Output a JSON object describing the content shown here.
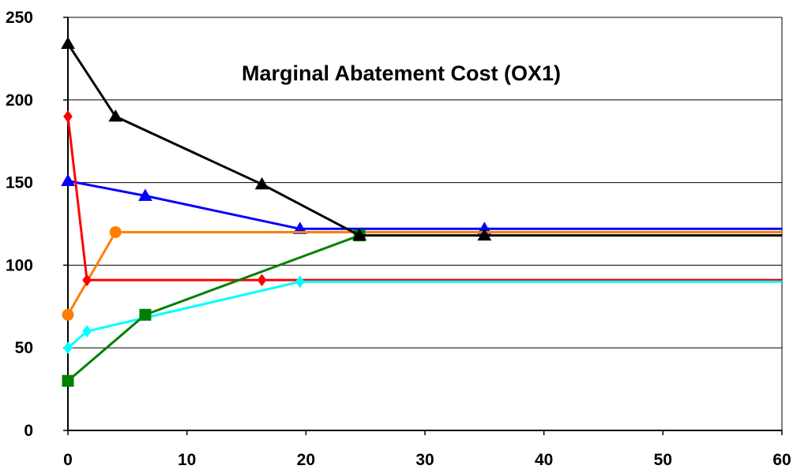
{
  "chart_data": {
    "type": "line",
    "title": "Marginal Abatement Cost (OX1)",
    "xlabel": "",
    "ylabel": "",
    "xlim": [
      0,
      60
    ],
    "ylim": [
      0,
      250
    ],
    "x_ticks": [
      0,
      10,
      20,
      30,
      40,
      50,
      60
    ],
    "y_ticks": [
      0,
      50,
      100,
      150,
      200,
      250
    ],
    "grid": {
      "horizontal": true,
      "vertical": false
    },
    "legend": "none",
    "series": [
      {
        "color": "#0000ff",
        "marker": "triangle",
        "points": [
          [
            0,
            151
          ],
          [
            6.5,
            142
          ],
          [
            19.5,
            122
          ],
          [
            35,
            122
          ],
          [
            60,
            122
          ]
        ],
        "marked": [
          true,
          true,
          true,
          true,
          false
        ]
      },
      {
        "color": "#ff7f00",
        "marker": "circle",
        "points": [
          [
            0,
            70
          ],
          [
            4,
            120
          ],
          [
            60,
            120
          ]
        ],
        "marked": [
          true,
          true,
          false
        ]
      },
      {
        "color": "#ff0000",
        "marker": "diamond",
        "points": [
          [
            0,
            190
          ],
          [
            1.6,
            91
          ],
          [
            16.3,
            91
          ],
          [
            60,
            91
          ]
        ],
        "marked": [
          true,
          true,
          true,
          false
        ]
      },
      {
        "color": "#00ffff",
        "marker": "diamond",
        "points": [
          [
            0,
            50
          ],
          [
            1.6,
            60
          ],
          [
            19.5,
            90
          ],
          [
            60,
            90
          ]
        ],
        "marked": [
          true,
          true,
          true,
          false
        ]
      },
      {
        "color": "#008000",
        "marker": "square",
        "points": [
          [
            0,
            30
          ],
          [
            6.5,
            70
          ],
          [
            24.5,
            118
          ]
        ],
        "marked": [
          true,
          true,
          true
        ]
      },
      {
        "color": "#000000",
        "marker": "triangle",
        "points": [
          [
            0,
            234
          ],
          [
            4,
            190
          ],
          [
            16.3,
            149
          ],
          [
            24.5,
            118
          ],
          [
            35,
            118
          ],
          [
            60,
            118
          ]
        ],
        "marked": [
          true,
          true,
          true,
          true,
          true,
          false
        ]
      }
    ]
  }
}
